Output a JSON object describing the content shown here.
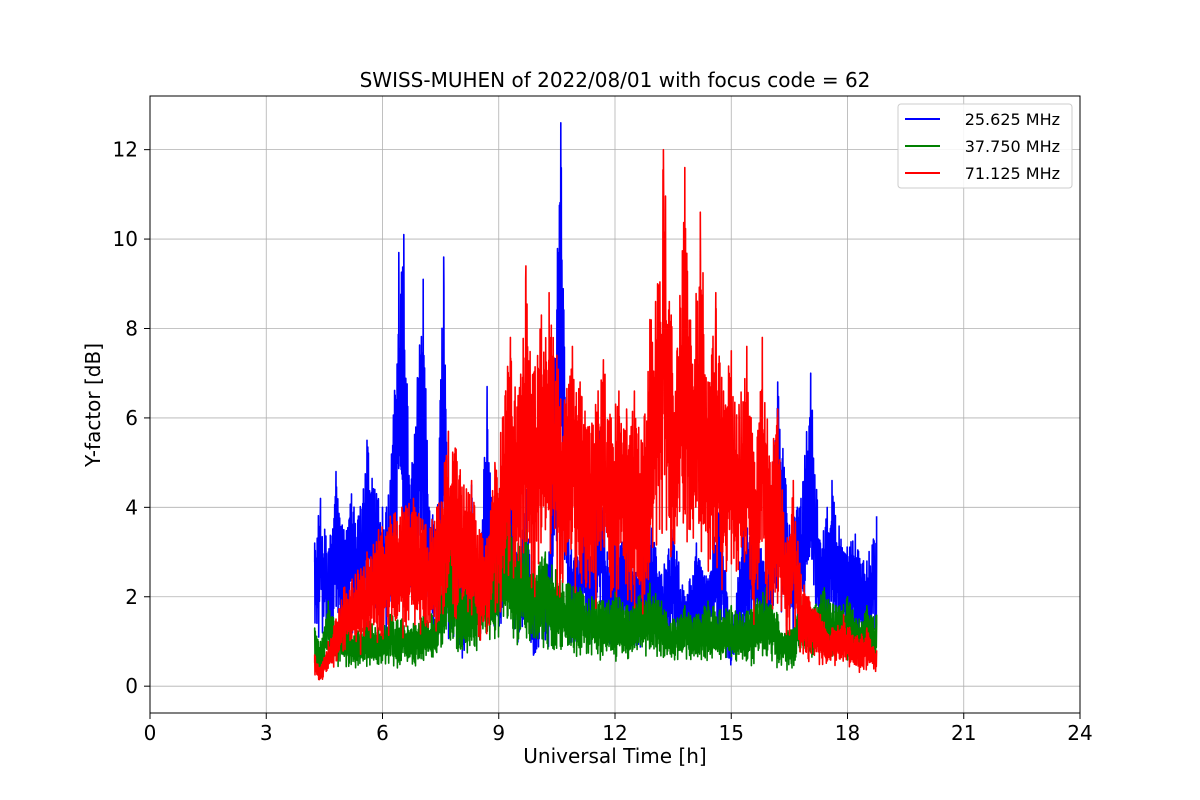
{
  "chart_data": {
    "type": "line",
    "title": "SWISS-MUHEN of 2022/08/01 with focus code = 62",
    "xlabel": "Universal Time [h]",
    "ylabel": "Y-factor [dB]",
    "xlim": [
      0,
      24
    ],
    "ylim": [
      -0.6,
      13.2
    ],
    "xticks": [
      0,
      3,
      6,
      9,
      12,
      15,
      18,
      21,
      24
    ],
    "yticks": [
      0,
      2,
      4,
      6,
      8,
      10,
      12
    ],
    "grid": true,
    "legend_position": "top-right",
    "series": [
      {
        "name": "25.625 MHz",
        "color": "#0000ff",
        "x": [
          4.25,
          4.4,
          4.6,
          4.8,
          5.0,
          5.2,
          5.4,
          5.6,
          5.8,
          6.0,
          6.2,
          6.42,
          6.55,
          6.7,
          6.9,
          7.05,
          7.2,
          7.4,
          7.58,
          7.7,
          7.9,
          8.1,
          8.3,
          8.5,
          8.7,
          8.9,
          9.1,
          9.3,
          9.5,
          9.7,
          9.9,
          10.1,
          10.3,
          10.6,
          10.8,
          11.0,
          11.2,
          11.4,
          11.6,
          11.8,
          12.0,
          12.3,
          12.6,
          12.9,
          13.2,
          13.5,
          13.8,
          14.1,
          14.4,
          14.7,
          15.0,
          15.3,
          15.6,
          15.9,
          16.2,
          16.5,
          16.8,
          17.05,
          17.3,
          17.6,
          17.9,
          18.2,
          18.5,
          18.75
        ],
        "y": [
          3.2,
          4.2,
          3.0,
          4.8,
          3.5,
          4.3,
          3.8,
          5.5,
          4.4,
          4.0,
          4.6,
          9.7,
          10.1,
          4.5,
          6.9,
          9.1,
          4.0,
          3.8,
          9.6,
          3.2,
          3.6,
          1.6,
          4.5,
          2.8,
          6.7,
          3.2,
          4.6,
          6.3,
          2.5,
          4.4,
          1.6,
          2.6,
          3.0,
          12.6,
          3.6,
          2.8,
          3.8,
          3.4,
          5.7,
          3.0,
          3.6,
          3.3,
          2.5,
          3.8,
          2.5,
          3.5,
          2.0,
          3.2,
          2.4,
          4.2,
          1.0,
          3.5,
          4.4,
          2.4,
          6.8,
          3.6,
          4.2,
          7.0,
          3.2,
          4.6,
          3.0,
          3.4,
          2.8,
          3.8
        ]
      },
      {
        "name": "37.750 MHz",
        "color": "#008000",
        "x": [
          4.25,
          4.4,
          4.6,
          4.8,
          5.0,
          5.3,
          5.6,
          5.9,
          6.2,
          6.5,
          6.8,
          7.1,
          7.4,
          7.7,
          8.0,
          8.3,
          8.6,
          8.9,
          9.1,
          9.3,
          9.5,
          9.7,
          9.9,
          10.2,
          10.5,
          10.8,
          11.1,
          11.4,
          11.7,
          12.0,
          12.3,
          12.6,
          12.9,
          13.2,
          13.5,
          13.8,
          14.1,
          14.4,
          14.7,
          15.0,
          15.3,
          15.6,
          15.9,
          16.2,
          16.5,
          16.8,
          17.1,
          17.4,
          17.7,
          18.0,
          18.3,
          18.5,
          18.75
        ],
        "y": [
          1.3,
          1.0,
          1.9,
          1.4,
          1.6,
          1.2,
          1.5,
          1.3,
          1.6,
          1.5,
          1.4,
          1.6,
          1.7,
          3.6,
          2.2,
          2.4,
          2.8,
          3.0,
          4.1,
          3.6,
          3.2,
          3.5,
          2.8,
          3.0,
          2.6,
          2.3,
          2.2,
          2.0,
          1.9,
          2.1,
          1.8,
          2.0,
          2.3,
          1.9,
          1.5,
          1.8,
          1.6,
          1.9,
          1.7,
          1.8,
          1.6,
          1.9,
          2.2,
          1.6,
          1.2,
          2.0,
          1.7,
          2.2,
          1.8,
          2.0,
          1.5,
          1.8,
          1.6
        ]
      },
      {
        "name": "71.125 MHz",
        "color": "#ff0000",
        "x": [
          4.25,
          4.4,
          4.6,
          4.8,
          5.0,
          5.3,
          5.6,
          5.9,
          6.2,
          6.5,
          6.8,
          7.1,
          7.4,
          7.7,
          7.9,
          8.1,
          8.3,
          8.5,
          8.7,
          8.9,
          9.1,
          9.3,
          9.5,
          9.7,
          9.9,
          10.1,
          10.3,
          10.5,
          10.7,
          10.9,
          11.1,
          11.3,
          11.5,
          11.7,
          11.9,
          12.1,
          12.3,
          12.5,
          12.7,
          12.9,
          13.1,
          13.25,
          13.45,
          13.6,
          13.8,
          14.0,
          14.2,
          14.4,
          14.6,
          14.8,
          15.0,
          15.2,
          15.4,
          15.6,
          15.8,
          16.0,
          16.2,
          16.4,
          16.6,
          16.8,
          17.0,
          17.3,
          17.6,
          17.9,
          18.2,
          18.5,
          18.75
        ],
        "y": [
          0.7,
          0.4,
          1.0,
          1.5,
          2.2,
          2.5,
          3.0,
          3.5,
          3.8,
          4.0,
          4.2,
          3.6,
          4.0,
          5.7,
          5.3,
          4.5,
          4.6,
          3.5,
          3.3,
          5.0,
          6.0,
          7.8,
          6.5,
          9.4,
          7.0,
          8.3,
          8.8,
          7.4,
          6.4,
          7.6,
          6.8,
          5.8,
          6.3,
          7.3,
          6.0,
          6.6,
          6.2,
          6.6,
          5.4,
          8.2,
          9.0,
          12.0,
          8.3,
          7.5,
          11.6,
          7.2,
          10.6,
          6.8,
          8.8,
          6.6,
          7.5,
          6.3,
          7.6,
          5.0,
          7.8,
          5.0,
          6.2,
          3.2,
          4.6,
          2.5,
          2.0,
          1.6,
          1.3,
          1.6,
          1.1,
          1.3,
          0.8
        ]
      }
    ]
  }
}
